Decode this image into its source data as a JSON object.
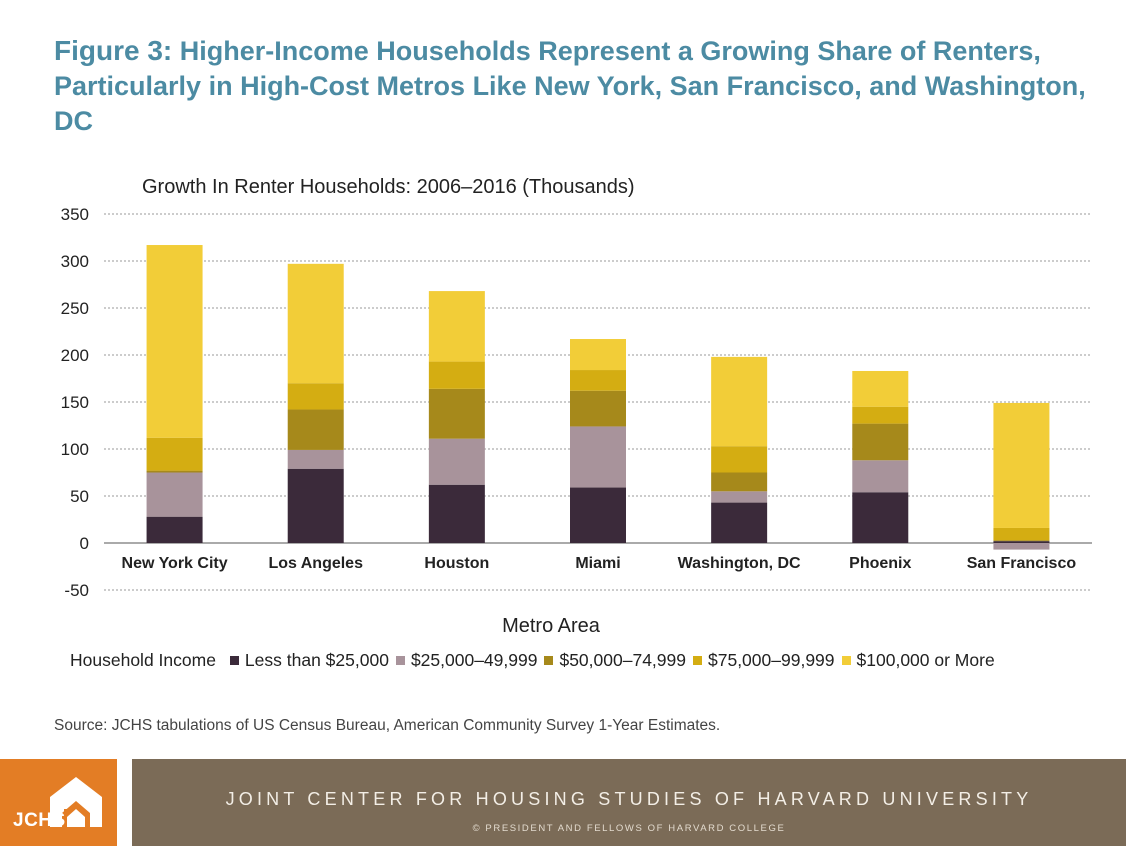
{
  "header": {
    "figure_label": "Figure 3:",
    "title": "Higher-Income Households Represent a Growing Share of Renters, Particularly in High-Cost Metros Like New York, San Francisco, and Washington, DC"
  },
  "chart_data": {
    "type": "bar",
    "stacked": true,
    "title": "Growth In Renter Households: 2006–2016 (Thousands)",
    "xlabel": "Metro Area",
    "ylabel": "",
    "ylim": [
      -50,
      350
    ],
    "yticks": [
      350,
      300,
      250,
      200,
      150,
      100,
      50,
      0,
      -50
    ],
    "grid": true,
    "legend_title": "Household Income",
    "legend_position": "bottom",
    "categories": [
      "New York City",
      "Los Angeles",
      "Houston",
      "Miami",
      "Washington, DC",
      "Phoenix",
      "San Francisco"
    ],
    "series": [
      {
        "name": "Less than $25,000",
        "color": "#3b2a3a",
        "values": [
          28,
          79,
          62,
          59,
          43,
          54,
          2
        ]
      },
      {
        "name": "$25,000–49,999",
        "color": "#a8939b",
        "values": [
          47,
          20,
          49,
          65,
          12,
          34,
          -7
        ]
      },
      {
        "name": "$50,000–74,999",
        "color": "#a6891b",
        "values": [
          2,
          43,
          53,
          38,
          20,
          39,
          1
        ]
      },
      {
        "name": "$75,000–99,999",
        "color": "#d4ad12",
        "values": [
          35,
          28,
          29,
          22,
          28,
          18,
          13
        ]
      },
      {
        "name": "$100,000 or More",
        "color": "#f2cd38",
        "values": [
          205,
          127,
          75,
          33,
          95,
          38,
          133
        ]
      }
    ]
  },
  "source": "Source: JCHS tabulations of US Census Bureau, American Community Survey 1-Year Estimates.",
  "footer": {
    "logo_text": "JCHS",
    "org_name": "JOINT CENTER FOR HOUSING STUDIES OF HARVARD UNIVERSITY",
    "copyright": "© PRESIDENT AND FELLOWS OF HARVARD COLLEGE"
  }
}
